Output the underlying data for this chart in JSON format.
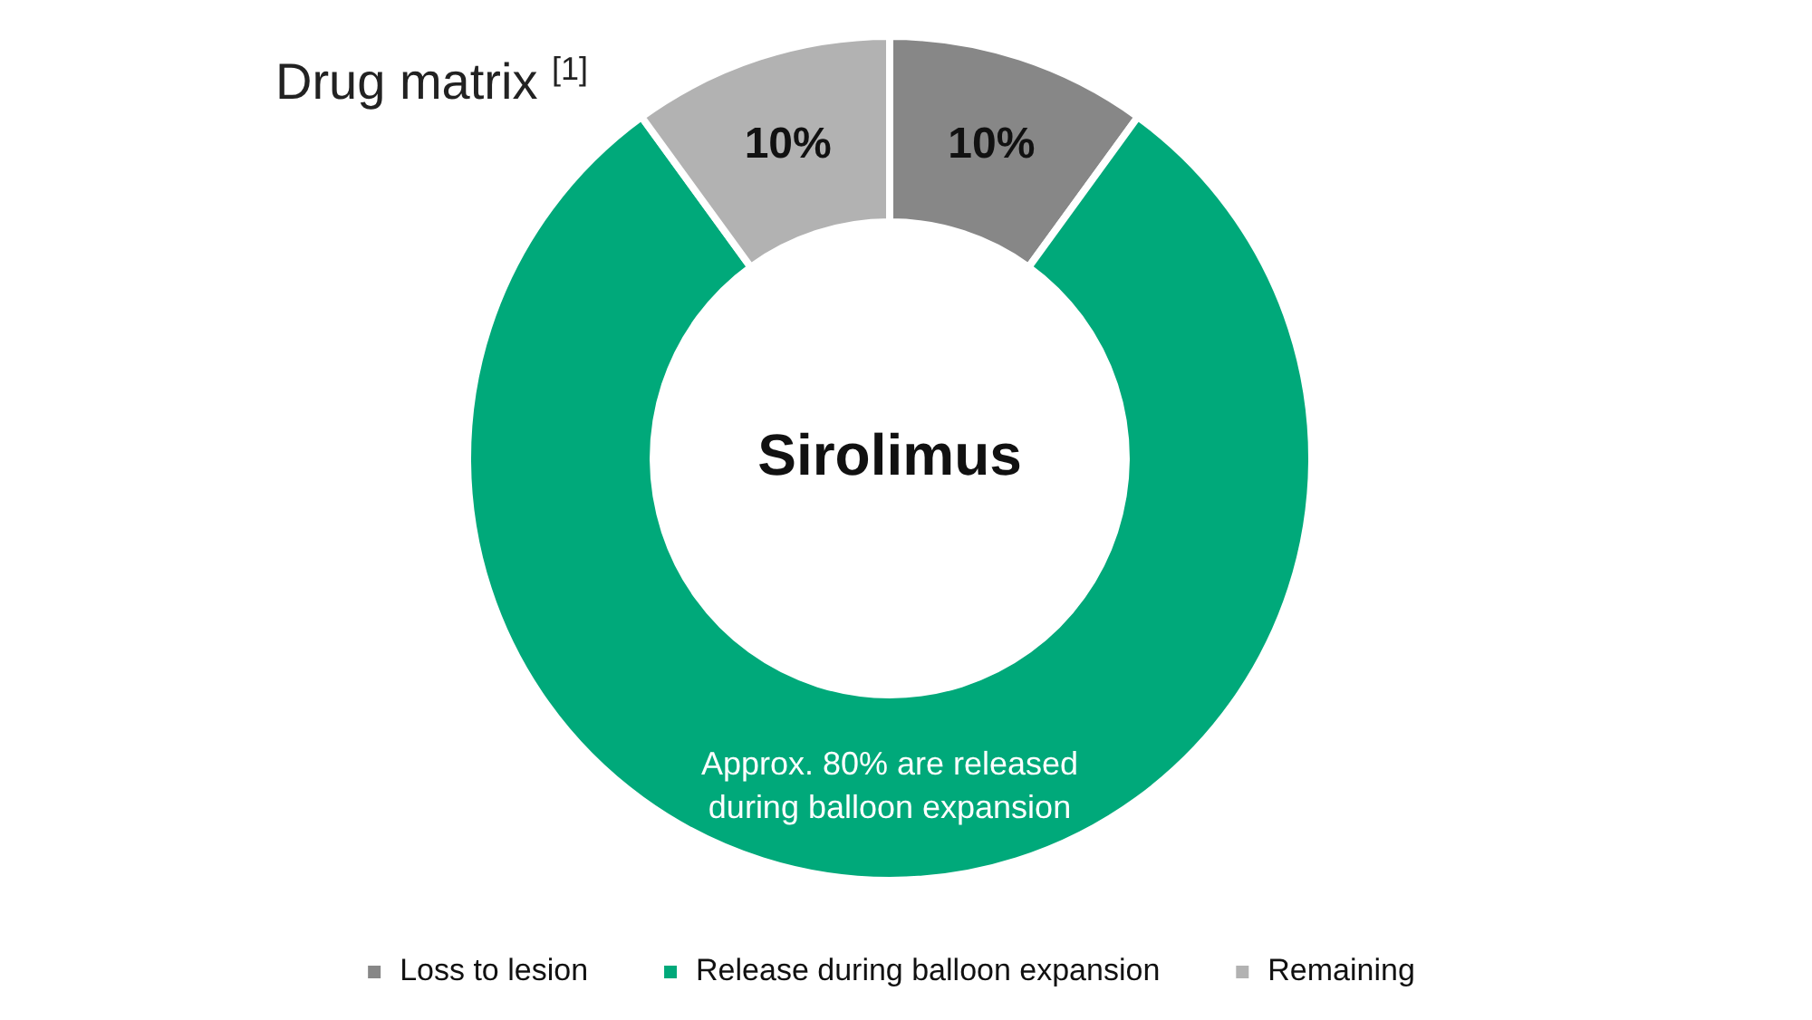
{
  "chart_data": {
    "type": "donut",
    "title": "Drug matrix $^{[1]}$",
    "categories": [
      "Loss to lesion",
      "Release during balloon expansion",
      "Remaining"
    ],
    "values": [
      10,
      80,
      10
    ],
    "colors": [
      "#878787",
      "#00a97a",
      "#b2b2b2"
    ],
    "value_labels": [
      "10%",
      "Approx. 80% are released during balloon expansion",
      "10%"
    ],
    "annotations": [
      "Sirolimus"
    ],
    "legend": "bottom"
  }
}
